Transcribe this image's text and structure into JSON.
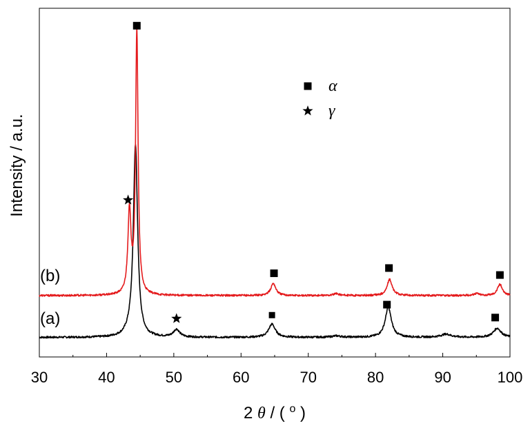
{
  "chart_data": {
    "type": "line",
    "xlabel_parts": [
      "2",
      "θ",
      " / (",
      "o",
      ")"
    ],
    "ylabel": "Intensity / a.u.",
    "xlim": [
      30,
      100
    ],
    "xticks": [
      30,
      40,
      50,
      60,
      70,
      80,
      90,
      100
    ],
    "xtick_labels": [
      "30",
      "40",
      "50",
      "60",
      "70",
      "80",
      "90",
      "100"
    ],
    "ylim": [
      0,
      100
    ],
    "grid": false,
    "legend": {
      "position": "top-center",
      "entries": [
        {
          "symbol": "square",
          "label": "α"
        },
        {
          "symbol": "star",
          "label": "γ"
        }
      ]
    },
    "series": [
      {
        "name": "(a)",
        "color": "#000000",
        "baseline": 5.6,
        "peaks": [
          [
            43.4,
            0.9,
            0.7
          ],
          [
            44.3,
            55.0,
            0.38
          ],
          [
            50.4,
            2.2,
            0.55
          ],
          [
            64.6,
            3.8,
            0.6
          ],
          [
            74.2,
            0.4,
            0.8
          ],
          [
            81.9,
            8.6,
            0.55
          ],
          [
            90.5,
            0.9,
            0.9
          ],
          [
            98.1,
            2.6,
            0.7
          ]
        ],
        "x": [
          30,
          40,
          43.4,
          44.3,
          50.4,
          64.6,
          81.9,
          98.1,
          100
        ],
        "y": [
          5.6,
          5.7,
          6.5,
          60.6,
          7.8,
          9.4,
          14.2,
          8.2,
          5.6
        ]
      },
      {
        "name": "(b)",
        "color": "#e41a1c",
        "baseline": 17.6,
        "peaks": [
          [
            43.4,
            23.5,
            0.28
          ],
          [
            44.5,
            76.0,
            0.22
          ],
          [
            64.8,
            3.5,
            0.45
          ],
          [
            74.2,
            0.5,
            0.6
          ],
          [
            82.1,
            4.6,
            0.45
          ],
          [
            95.0,
            0.6,
            0.5
          ],
          [
            98.5,
            3.2,
            0.45
          ]
        ],
        "x": [
          30,
          40,
          43.4,
          44.5,
          64.8,
          82.1,
          98.5,
          100
        ],
        "y": [
          17.6,
          17.7,
          41.1,
          93.6,
          21.1,
          22.2,
          20.8,
          17.6
        ]
      }
    ],
    "markers": [
      {
        "symbol": "square",
        "x": 44.5,
        "y": 95.0,
        "size": "large"
      },
      {
        "symbol": "star",
        "x": 43.2,
        "y": 45.0
      },
      {
        "symbol": "square",
        "x": 64.9,
        "y": 24.0,
        "size": "large"
      },
      {
        "symbol": "square",
        "x": 82.0,
        "y": 25.5,
        "size": "large"
      },
      {
        "symbol": "square",
        "x": 98.5,
        "y": 23.5,
        "size": "large"
      },
      {
        "symbol": "star",
        "x": 50.4,
        "y": 11.0
      },
      {
        "symbol": "square",
        "x": 64.6,
        "y": 12.0,
        "size": "small"
      },
      {
        "symbol": "square",
        "x": 81.7,
        "y": 15.0,
        "size": "large"
      },
      {
        "symbol": "square",
        "x": 97.8,
        "y": 11.3,
        "size": "large"
      }
    ]
  }
}
